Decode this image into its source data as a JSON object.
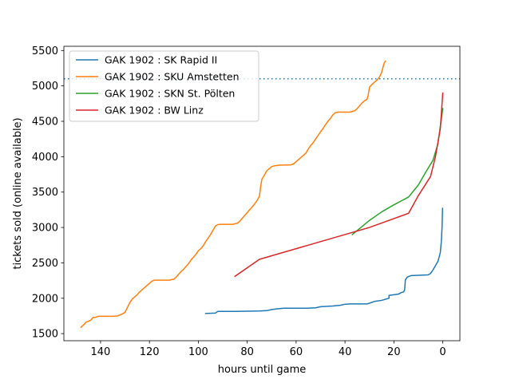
{
  "chart_data": {
    "type": "line",
    "title": "",
    "xlabel": "hours until game",
    "ylabel": "tickets sold (online available)",
    "xlim": [
      155,
      -7
    ],
    "ylim": [
      1400,
      5560
    ],
    "x_inverted": true,
    "xticks": [
      140,
      120,
      100,
      80,
      60,
      40,
      20,
      0
    ],
    "yticks": [
      1500,
      2000,
      2500,
      3000,
      3500,
      4000,
      4500,
      5000,
      5500
    ],
    "grid": false,
    "legend_position": "top-left",
    "reference_line": {
      "y": 5100,
      "style": "dotted",
      "color": "#1f77b4"
    },
    "series": [
      {
        "name": "GAK 1902 : SK Rapid II",
        "color": "#1f77b4",
        "points": [
          [
            97,
            1785
          ],
          [
            93,
            1790
          ],
          [
            92,
            1815
          ],
          [
            85,
            1815
          ],
          [
            75,
            1820
          ],
          [
            72,
            1825
          ],
          [
            70,
            1840
          ],
          [
            68,
            1850
          ],
          [
            65,
            1860
          ],
          [
            55,
            1860
          ],
          [
            52,
            1865
          ],
          [
            50,
            1880
          ],
          [
            45,
            1890
          ],
          [
            42,
            1900
          ],
          [
            40,
            1915
          ],
          [
            38,
            1920
          ],
          [
            31,
            1920
          ],
          [
            30,
            1930
          ],
          [
            28,
            1955
          ],
          [
            25,
            1970
          ],
          [
            22,
            2000
          ],
          [
            22,
            2040
          ],
          [
            18,
            2060
          ],
          [
            17,
            2080
          ],
          [
            16,
            2090
          ],
          [
            15.6,
            2120
          ],
          [
            15.3,
            2260
          ],
          [
            14.5,
            2300
          ],
          [
            13,
            2320
          ],
          [
            6,
            2330
          ],
          [
            5,
            2350
          ],
          [
            4,
            2400
          ],
          [
            3,
            2460
          ],
          [
            2,
            2520
          ],
          [
            1.5,
            2580
          ],
          [
            1,
            2650
          ],
          [
            0.6,
            2800
          ],
          [
            0.3,
            3000
          ],
          [
            0.1,
            3270
          ]
        ]
      },
      {
        "name": "GAK 1902 : SKU Amstetten",
        "color": "#ff7f0e",
        "points": [
          [
            148,
            1590
          ],
          [
            147,
            1620
          ],
          [
            146,
            1660
          ],
          [
            144,
            1690
          ],
          [
            143,
            1730
          ],
          [
            142,
            1730
          ],
          [
            141,
            1745
          ],
          [
            135,
            1745
          ],
          [
            133,
            1750
          ],
          [
            131,
            1780
          ],
          [
            130,
            1800
          ],
          [
            129,
            1870
          ],
          [
            128,
            1940
          ],
          [
            127,
            1990
          ],
          [
            125,
            2050
          ],
          [
            124,
            2090
          ],
          [
            123,
            2120
          ],
          [
            122,
            2150
          ],
          [
            121,
            2180
          ],
          [
            120,
            2210
          ],
          [
            119,
            2240
          ],
          [
            118,
            2255
          ],
          [
            112,
            2255
          ],
          [
            110,
            2270
          ],
          [
            109,
            2300
          ],
          [
            108,
            2340
          ],
          [
            107,
            2380
          ],
          [
            106,
            2410
          ],
          [
            105,
            2450
          ],
          [
            104,
            2490
          ],
          [
            103,
            2540
          ],
          [
            102,
            2580
          ],
          [
            101,
            2620
          ],
          [
            100,
            2670
          ],
          [
            99,
            2700
          ],
          [
            98,
            2740
          ],
          [
            97,
            2800
          ],
          [
            96,
            2850
          ],
          [
            95,
            2900
          ],
          [
            94,
            2960
          ],
          [
            93,
            3020
          ],
          [
            92,
            3040
          ],
          [
            91,
            3045
          ],
          [
            86,
            3045
          ],
          [
            84,
            3060
          ],
          [
            83,
            3090
          ],
          [
            82,
            3130
          ],
          [
            81,
            3170
          ],
          [
            80,
            3210
          ],
          [
            79,
            3250
          ],
          [
            78,
            3290
          ],
          [
            77,
            3330
          ],
          [
            76,
            3380
          ],
          [
            75,
            3440
          ],
          [
            74.5,
            3580
          ],
          [
            74,
            3680
          ],
          [
            73,
            3740
          ],
          [
            72,
            3800
          ],
          [
            71,
            3830
          ],
          [
            70,
            3860
          ],
          [
            69,
            3870
          ],
          [
            67,
            3880
          ],
          [
            62,
            3885
          ],
          [
            61,
            3900
          ],
          [
            60,
            3930
          ],
          [
            59,
            3960
          ],
          [
            58,
            3990
          ],
          [
            57,
            4020
          ],
          [
            56,
            4050
          ],
          [
            55,
            4110
          ],
          [
            54,
            4160
          ],
          [
            53,
            4200
          ],
          [
            52,
            4250
          ],
          [
            51,
            4300
          ],
          [
            50,
            4350
          ],
          [
            49,
            4400
          ],
          [
            48,
            4450
          ],
          [
            47,
            4500
          ],
          [
            46,
            4540
          ],
          [
            45,
            4590
          ],
          [
            44,
            4620
          ],
          [
            43,
            4630
          ],
          [
            38,
            4630
          ],
          [
            37,
            4640
          ],
          [
            36,
            4650
          ],
          [
            35,
            4680
          ],
          [
            34,
            4720
          ],
          [
            33,
            4760
          ],
          [
            32,
            4790
          ],
          [
            31,
            4810
          ],
          [
            30.5,
            4870
          ],
          [
            30,
            4980
          ],
          [
            29,
            5020
          ],
          [
            28,
            5050
          ],
          [
            27,
            5080
          ],
          [
            26,
            5120
          ],
          [
            25,
            5190
          ],
          [
            24.5,
            5260
          ],
          [
            24,
            5320
          ],
          [
            23.5,
            5350
          ]
        ]
      },
      {
        "name": "GAK 1902 : SKN St. Pölten",
        "color": "#2ca02c",
        "points": [
          [
            37,
            2900
          ],
          [
            30,
            3100
          ],
          [
            25,
            3220
          ],
          [
            20,
            3320
          ],
          [
            14,
            3430
          ],
          [
            10,
            3600
          ],
          [
            7,
            3780
          ],
          [
            4,
            3950
          ],
          [
            2,
            4180
          ],
          [
            0,
            4680
          ]
        ]
      },
      {
        "name": "GAK 1902 : BW Linz",
        "color": "#d62728",
        "points": [
          [
            85,
            2310
          ],
          [
            75,
            2550
          ],
          [
            30,
            3000
          ],
          [
            14,
            3200
          ],
          [
            10,
            3450
          ],
          [
            5,
            3720
          ],
          [
            3,
            4000
          ],
          [
            1,
            4400
          ],
          [
            0,
            4900
          ]
        ]
      }
    ]
  }
}
